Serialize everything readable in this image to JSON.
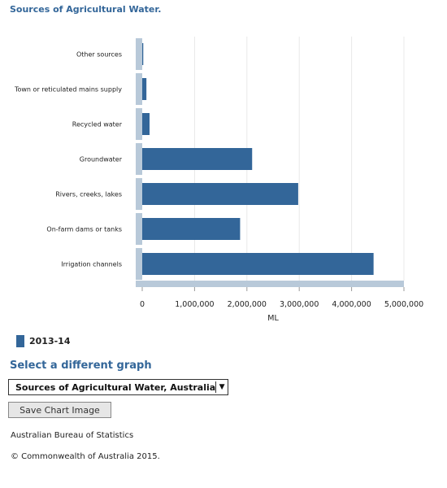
{
  "chart_data": {
    "type": "bar",
    "orientation": "horizontal",
    "title": "Sources of Agricultural Water.",
    "categories": [
      "Other sources",
      "Town or reticulated mains supply",
      "Recycled water",
      "Groundwater",
      "Rivers, creeks, lakes",
      "On-farm dams or tanks",
      "Irrigation channels"
    ],
    "series": [
      {
        "name": "2013-14",
        "color": "#336699",
        "values": [
          20000,
          80000,
          140000,
          2100000,
          2980000,
          1870000,
          4420000
        ]
      }
    ],
    "xlabel": "ML",
    "ylabel": "",
    "xlim": [
      0,
      5000000
    ],
    "x_ticks": [
      0,
      1000000,
      2000000,
      3000000,
      4000000,
      5000000
    ],
    "x_tick_labels": [
      "0",
      "1,000,000",
      "2,000,000",
      "3,000,000",
      "4,000,000",
      "5,000,000"
    ],
    "grid": true,
    "legend_position": "bottom-left"
  },
  "legend": {
    "label": "2013-14"
  },
  "controls": {
    "select_heading": "Select a different graph",
    "graph_select_value": "Sources of Agricultural Water, Australia",
    "save_button_label": "Save Chart Image"
  },
  "footer": {
    "source": "Australian Bureau of Statistics",
    "copyright": "© Commonwealth of Australia 2015."
  },
  "colors": {
    "accent": "#336699",
    "axis": "#b8c9d9",
    "grid": "#e8e8e8"
  },
  "icons": {
    "dropdown": "triangle-down-icon"
  }
}
